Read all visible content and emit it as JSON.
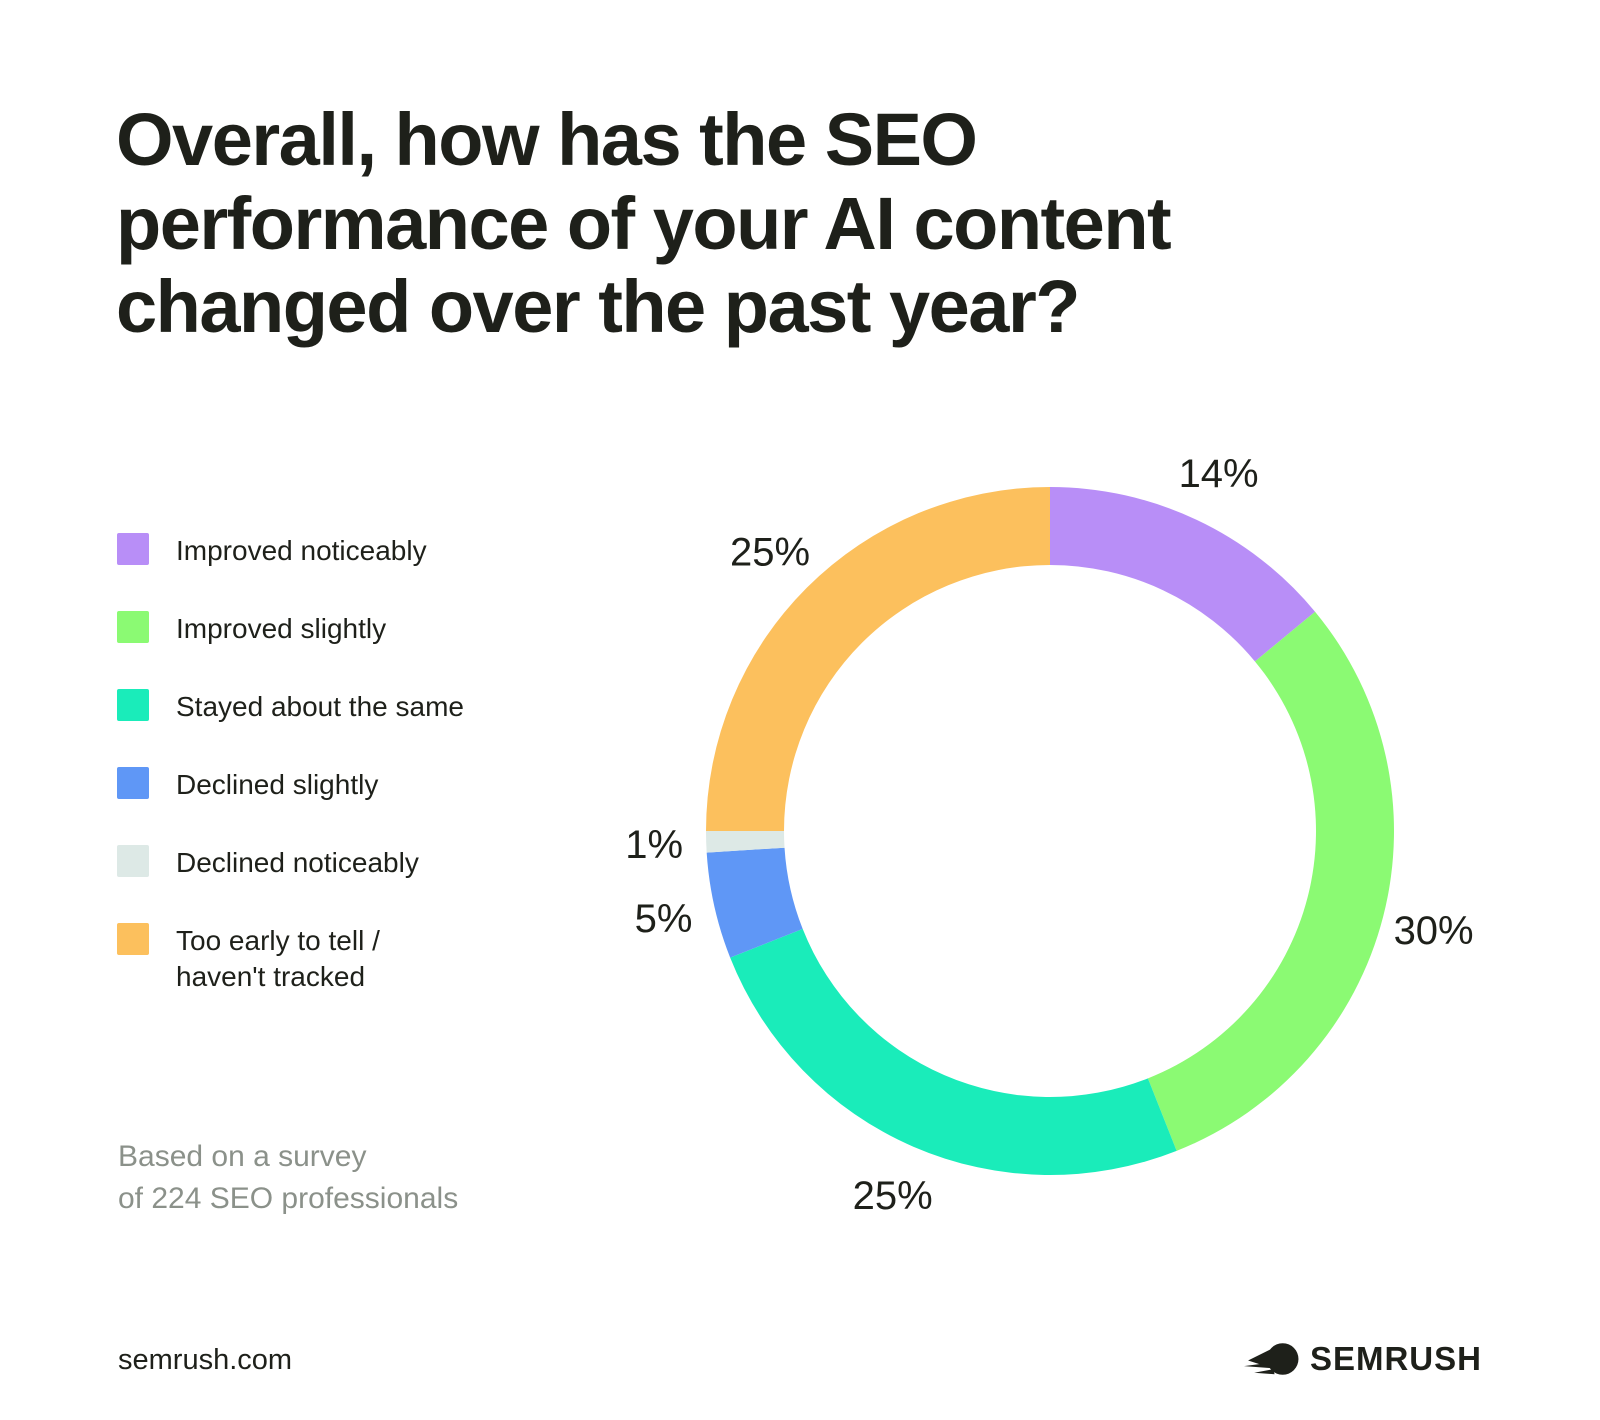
{
  "title_lines": [
    "Overall, how has the SEO",
    "performance of your AI content",
    "changed over the past year?"
  ],
  "title": "Overall, how has the SEO performance of your AI content changed over the past year?",
  "colors": {
    "improved_noticeably": "#b88ef7",
    "improved_slightly": "#8bfa73",
    "stayed_same": "#1aecba",
    "declined_slightly": "#5f97f6",
    "declined_noticeably": "#dde9e6",
    "too_early": "#fcc05d",
    "ink": "#1e201a",
    "muted_text": "#8b918a",
    "background": "#ffffff"
  },
  "legend": {
    "items": [
      {
        "label": "Improved noticeably",
        "color": "#b88ef7"
      },
      {
        "label": "Improved slightly",
        "color": "#8bfa73"
      },
      {
        "label": "Stayed about the same",
        "color": "#1aecba"
      },
      {
        "label": "Declined slightly",
        "color": "#5f97f6"
      },
      {
        "label": "Declined noticeably",
        "color": "#dde9e6"
      },
      {
        "label": "Too early to tell /\nhaven't tracked",
        "color": "#fcc05d"
      }
    ]
  },
  "chart_data": {
    "type": "pie",
    "subtype": "donut",
    "title": "Overall, how has the SEO performance of your AI content changed over the past year?",
    "categories": [
      "Improved noticeably",
      "Improved slightly",
      "Stayed about the same",
      "Declined slightly",
      "Declined noticeably",
      "Too early to tell / haven't tracked"
    ],
    "values": [
      14,
      30,
      25,
      5,
      1,
      25
    ],
    "unit": "%",
    "data_labels": [
      "14%",
      "30%",
      "25%",
      "5%",
      "1%",
      "25%"
    ],
    "colors": [
      "#b88ef7",
      "#8bfa73",
      "#1aecba",
      "#5f97f6",
      "#dde9e6",
      "#fcc05d"
    ],
    "start_angle_deg": 0,
    "direction": "clockwise",
    "inner_radius_ratio": 0.773,
    "legend_position": "left",
    "source_note": "Based on a survey of 224 SEO professionals"
  },
  "note": {
    "line1": "Based on a survey",
    "line2": "of 224 SEO professionals"
  },
  "footer": {
    "site": "semrush.com",
    "brand": "SEMRUSH"
  }
}
